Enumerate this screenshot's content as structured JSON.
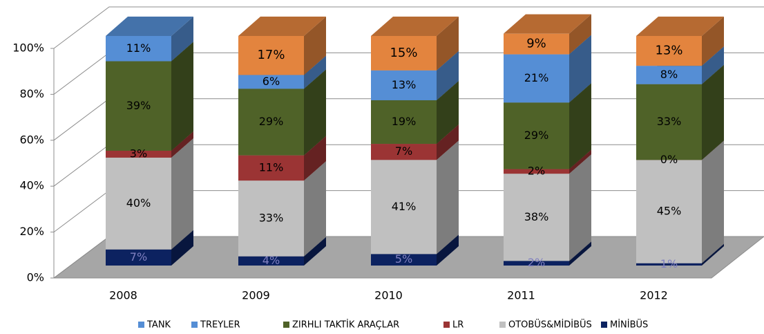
{
  "chart_data": {
    "type": "bar3d_stacked",
    "categories": [
      "2008",
      "2009",
      "2010",
      "2011",
      "2012"
    ],
    "series": [
      {
        "name": "MİNİBÜS",
        "color": "#0c2260",
        "label_color": "#8080c0",
        "values": [
          7,
          4,
          5,
          2,
          1
        ],
        "value_labels": [
          "7%",
          "4%",
          "5%",
          "2%",
          "1%"
        ]
      },
      {
        "name": "OTOBÜS&MİDİBÜS",
        "color": "#c0c0c0",
        "values": [
          40,
          33,
          41,
          38,
          45
        ],
        "value_labels": [
          "40%",
          "33%",
          "41%",
          "38%",
          "45%"
        ]
      },
      {
        "name": "LR",
        "color": "#9b3434",
        "values": [
          3,
          11,
          7,
          2,
          0
        ],
        "value_labels": [
          "3%",
          "11%",
          "7%",
          "2%",
          "0%"
        ]
      },
      {
        "name": "ZIRHLI TAKTİK ARAÇLAR",
        "color": "#4f6228",
        "values": [
          39,
          29,
          19,
          29,
          33
        ],
        "value_labels": [
          "39%",
          "29%",
          "19%",
          "29%",
          "33%"
        ]
      },
      {
        "name": "TREYLER",
        "color": "#558ed5",
        "values": [
          11,
          6,
          13,
          21,
          8
        ],
        "value_labels": [
          "11%",
          "6%",
          "13%",
          "21%",
          "8%"
        ]
      },
      {
        "name": "TANK",
        "color": "#e3843e",
        "legend_color": "#558ed5",
        "values": [
          null,
          17,
          15,
          9,
          13
        ],
        "value_labels": [
          null,
          "17%",
          "15%",
          "9%",
          "13%"
        ]
      }
    ],
    "ylim": [
      0,
      100
    ],
    "yticks": [
      {
        "value": 0,
        "label": "0%"
      },
      {
        "value": 20,
        "label": "20%"
      },
      {
        "value": 40,
        "label": "40%"
      },
      {
        "value": 60,
        "label": "60%"
      },
      {
        "value": 80,
        "label": "80%"
      },
      {
        "value": 100,
        "label": "100%"
      }
    ],
    "grid": true,
    "legend": "bottom"
  }
}
